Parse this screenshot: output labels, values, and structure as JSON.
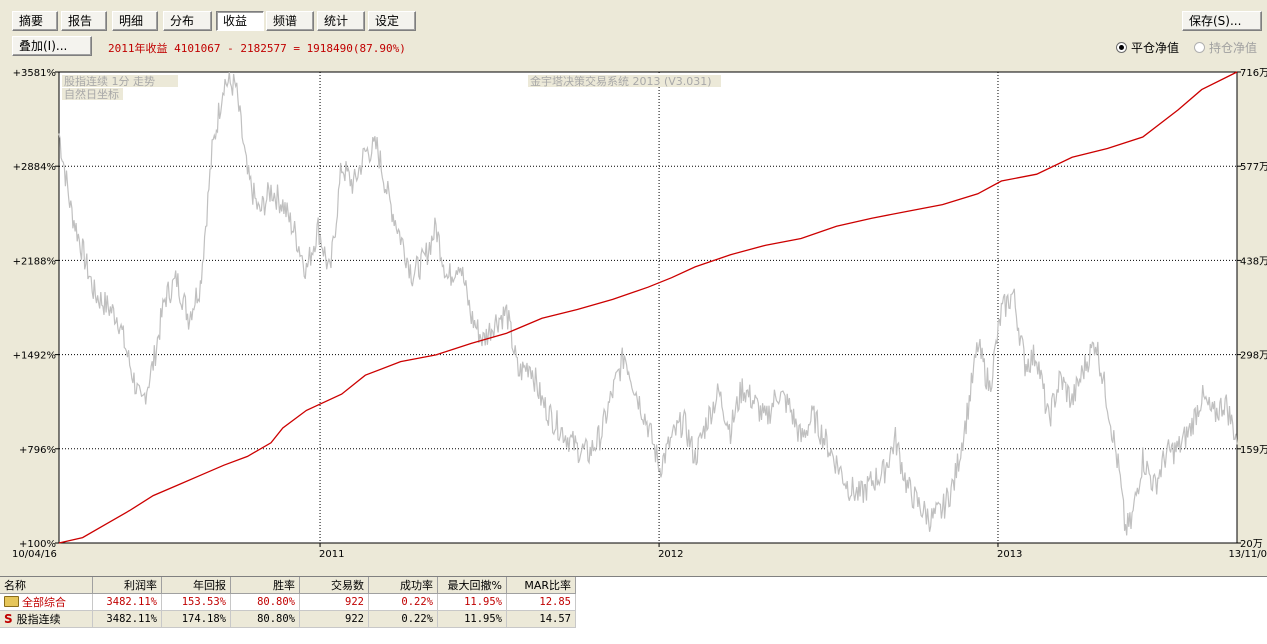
{
  "tabs": [
    {
      "label": "摘要"
    },
    {
      "label": "报告"
    },
    {
      "label": "明细"
    },
    {
      "label": "分布"
    },
    {
      "label": "收益"
    },
    {
      "label": "频谱"
    },
    {
      "label": "统计"
    },
    {
      "label": "设定"
    }
  ],
  "active_tab": "收益",
  "toolbar": {
    "save_label": "保存(S)...",
    "overlay_label": "叠加(I)...",
    "summary": "2011年收益 4101067 - 2182577 = 1918490(87.90%)",
    "radio_close": "平仓净值",
    "radio_hold": "持仓净值"
  },
  "chart_data": {
    "type": "line",
    "legend_top_left": [
      "股指连续 1分 走势",
      "自然日坐标"
    ],
    "watermark": "金宇塔决策交易系统 2013 (V3.031)",
    "left_axis_ticks": [
      "+3581%",
      "+2884%",
      "+2188%",
      "+1492%",
      "+796%",
      "+100%"
    ],
    "right_axis_ticks": [
      "716万",
      "577万",
      "438万",
      "298万",
      "159万",
      "20万"
    ],
    "x_labels": [
      {
        "label": "10/04/16",
        "t": 0
      },
      {
        "label": "2011",
        "t": 0.2216
      },
      {
        "label": "2012",
        "t": 0.5094
      },
      {
        "label": "2013",
        "t": 0.7971
      },
      {
        "label": "13/11/0",
        "t": 1
      }
    ],
    "right_axis_range": [
      20,
      716
    ],
    "equity_series": {
      "name": "净值",
      "color": "#cc0000",
      "points": [
        [
          0,
          20
        ],
        [
          0.02,
          28
        ],
        [
          0.04,
          48
        ],
        [
          0.06,
          68
        ],
        [
          0.08,
          90
        ],
        [
          0.1,
          105
        ],
        [
          0.12,
          120
        ],
        [
          0.14,
          135
        ],
        [
          0.16,
          148
        ],
        [
          0.18,
          168
        ],
        [
          0.19,
          190
        ],
        [
          0.21,
          216
        ],
        [
          0.24,
          240
        ],
        [
          0.26,
          268
        ],
        [
          0.29,
          288
        ],
        [
          0.32,
          298
        ],
        [
          0.35,
          315
        ],
        [
          0.38,
          330
        ],
        [
          0.41,
          352
        ],
        [
          0.44,
          365
        ],
        [
          0.47,
          380
        ],
        [
          0.5,
          398
        ],
        [
          0.52,
          412
        ],
        [
          0.54,
          428
        ],
        [
          0.57,
          446
        ],
        [
          0.6,
          460
        ],
        [
          0.63,
          470
        ],
        [
          0.66,
          488
        ],
        [
          0.69,
          500
        ],
        [
          0.72,
          510
        ],
        [
          0.75,
          520
        ],
        [
          0.78,
          536
        ],
        [
          0.8,
          555
        ],
        [
          0.83,
          565
        ],
        [
          0.86,
          590
        ],
        [
          0.89,
          603
        ],
        [
          0.92,
          620
        ],
        [
          0.95,
          660
        ],
        [
          0.97,
          690
        ],
        [
          1.0,
          716
        ]
      ]
    },
    "price_series": {
      "name": "股指连续",
      "color": "#c0c0c0",
      "points": [
        [
          0,
          0.87
        ],
        [
          0.01,
          0.71
        ],
        [
          0.02,
          0.62
        ],
        [
          0.03,
          0.53
        ],
        [
          0.05,
          0.48
        ],
        [
          0.06,
          0.38
        ],
        [
          0.07,
          0.29
        ],
        [
          0.08,
          0.38
        ],
        [
          0.09,
          0.52
        ],
        [
          0.1,
          0.56
        ],
        [
          0.11,
          0.48
        ],
        [
          0.12,
          0.55
        ],
        [
          0.13,
          0.83
        ],
        [
          0.14,
          0.98
        ],
        [
          0.15,
          0.97
        ],
        [
          0.16,
          0.78
        ],
        [
          0.17,
          0.7
        ],
        [
          0.18,
          0.75
        ],
        [
          0.19,
          0.72
        ],
        [
          0.2,
          0.66
        ],
        [
          0.21,
          0.58
        ],
        [
          0.22,
          0.67
        ],
        [
          0.23,
          0.57
        ],
        [
          0.24,
          0.8
        ],
        [
          0.25,
          0.76
        ],
        [
          0.26,
          0.83
        ],
        [
          0.27,
          0.84
        ],
        [
          0.28,
          0.73
        ],
        [
          0.29,
          0.65
        ],
        [
          0.3,
          0.57
        ],
        [
          0.31,
          0.6
        ],
        [
          0.32,
          0.67
        ],
        [
          0.33,
          0.56
        ],
        [
          0.34,
          0.6
        ],
        [
          0.35,
          0.48
        ],
        [
          0.36,
          0.43
        ],
        [
          0.37,
          0.47
        ],
        [
          0.38,
          0.49
        ],
        [
          0.39,
          0.36
        ],
        [
          0.4,
          0.38
        ],
        [
          0.41,
          0.3
        ],
        [
          0.42,
          0.26
        ],
        [
          0.43,
          0.23
        ],
        [
          0.44,
          0.2
        ],
        [
          0.45,
          0.19
        ],
        [
          0.46,
          0.23
        ],
        [
          0.47,
          0.32
        ],
        [
          0.48,
          0.4
        ],
        [
          0.49,
          0.32
        ],
        [
          0.5,
          0.25
        ],
        [
          0.51,
          0.16
        ],
        [
          0.52,
          0.22
        ],
        [
          0.53,
          0.26
        ],
        [
          0.54,
          0.18
        ],
        [
          0.55,
          0.26
        ],
        [
          0.56,
          0.32
        ],
        [
          0.57,
          0.24
        ],
        [
          0.58,
          0.33
        ],
        [
          0.59,
          0.3
        ],
        [
          0.6,
          0.26
        ],
        [
          0.61,
          0.32
        ],
        [
          0.62,
          0.29
        ],
        [
          0.63,
          0.22
        ],
        [
          0.64,
          0.27
        ],
        [
          0.65,
          0.22
        ],
        [
          0.66,
          0.17
        ],
        [
          0.67,
          0.12
        ],
        [
          0.68,
          0.1
        ],
        [
          0.69,
          0.13
        ],
        [
          0.7,
          0.15
        ],
        [
          0.71,
          0.22
        ],
        [
          0.72,
          0.12
        ],
        [
          0.73,
          0.08
        ],
        [
          0.74,
          0.05
        ],
        [
          0.75,
          0.07
        ],
        [
          0.76,
          0.13
        ],
        [
          0.77,
          0.26
        ],
        [
          0.78,
          0.42
        ],
        [
          0.79,
          0.33
        ],
        [
          0.8,
          0.49
        ],
        [
          0.81,
          0.53
        ],
        [
          0.82,
          0.38
        ],
        [
          0.83,
          0.4
        ],
        [
          0.84,
          0.26
        ],
        [
          0.85,
          0.35
        ],
        [
          0.86,
          0.3
        ],
        [
          0.87,
          0.37
        ],
        [
          0.88,
          0.43
        ],
        [
          0.89,
          0.3
        ],
        [
          0.9,
          0.15
        ],
        [
          0.905,
          0.03
        ],
        [
          0.91,
          0.04
        ],
        [
          0.92,
          0.18
        ],
        [
          0.93,
          0.12
        ],
        [
          0.94,
          0.19
        ],
        [
          0.95,
          0.2
        ],
        [
          0.96,
          0.24
        ],
        [
          0.97,
          0.31
        ],
        [
          0.98,
          0.27
        ],
        [
          0.99,
          0.3
        ],
        [
          1.0,
          0.22
        ]
      ]
    }
  },
  "table": {
    "headers": [
      "名称",
      "利润率",
      "年回报",
      "胜率",
      "交易数",
      "成功率",
      "最大回撤%",
      "MAR比率"
    ],
    "rows": [
      {
        "name": "全部综合",
        "icon": "folder-icon",
        "values": [
          "3482.11%",
          "153.53%",
          "80.80%",
          "922",
          "0.22%",
          "11.95%",
          "12.85"
        ]
      },
      {
        "name": "股指连续",
        "icon": "strategy-s-icon",
        "values": [
          "3482.11%",
          "174.18%",
          "80.80%",
          "922",
          "0.22%",
          "11.95%",
          "14.57"
        ]
      }
    ]
  }
}
